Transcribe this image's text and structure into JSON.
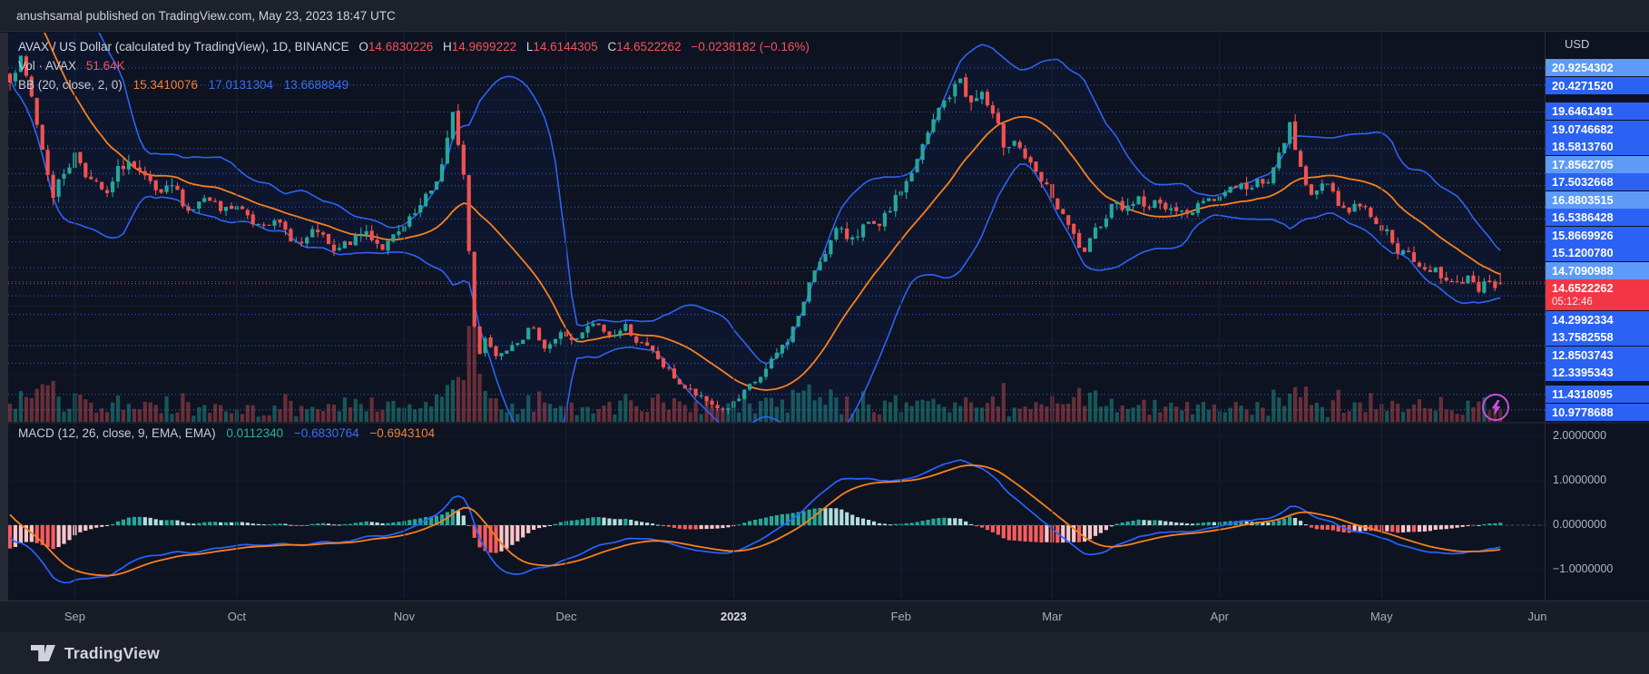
{
  "publish_bar": {
    "text": "anushsamal published on TradingView.com, May 23, 2023 18:47 UTC"
  },
  "legend": {
    "symbol": "AVAX / US Dollar (calculated by TradingView), 1D, BINANCE",
    "o_label": "O",
    "o": "14.6830226",
    "h_label": "H",
    "h": "14.9699222",
    "l_label": "L",
    "l": "14.6144305",
    "c_label": "C",
    "c": "14.6522262",
    "change": "−0.0238182 (−0.16%)",
    "vol_label": "Vol · AVAX",
    "vol_value": "51.64K",
    "bb_label": "BB (20, close, 2, 0)",
    "bb_v1": "15.3410076",
    "bb_v2": "17.0131304",
    "bb_v3": "13.6688849",
    "macd_label": "MACD (12, 26, close, 9, EMA, EMA)",
    "macd_v1": "0.0112340",
    "macd_v2": "−0.6830764",
    "macd_v3": "−0.6943104"
  },
  "price_scale": {
    "currency": "USD",
    "levels": [
      {
        "label": "20.9254302",
        "value": 20.9254302,
        "variant": "light"
      },
      {
        "label": "20.4271520",
        "value": 20.427152,
        "variant": "blue"
      },
      {
        "label": "19.6461491",
        "value": 19.6461491,
        "variant": "blue"
      },
      {
        "label": "19.0746682",
        "value": 19.0746682,
        "variant": "blue"
      },
      {
        "label": "18.5813760",
        "value": 18.581376,
        "variant": "blue"
      },
      {
        "label": "17.8562705",
        "value": 17.8562705,
        "variant": "light"
      },
      {
        "label": "17.5032668",
        "value": 17.5032668,
        "variant": "blue"
      },
      {
        "label": "16.8803515",
        "value": 16.8803515,
        "variant": "light"
      },
      {
        "label": "16.5386428",
        "value": 16.5386428,
        "variant": "blue"
      },
      {
        "label": "15.8669926",
        "value": 15.8669926,
        "variant": "blue"
      },
      {
        "label": "15.1200780",
        "value": 15.120078,
        "variant": "blue"
      },
      {
        "label": "14.7090988",
        "value": 14.7090988,
        "variant": "light"
      },
      {
        "label": "14.2992334",
        "value": 14.2992334,
        "variant": "blue"
      },
      {
        "label": "13.7582558",
        "value": 13.7582558,
        "variant": "blue"
      },
      {
        "label": "12.8503743",
        "value": 12.8503743,
        "variant": "blue"
      },
      {
        "label": "12.3395343",
        "value": 12.3395343,
        "variant": "blue"
      },
      {
        "label": "11.4318095",
        "value": 11.4318095,
        "variant": "blue"
      },
      {
        "label": "10.9778688",
        "value": 10.9778688,
        "variant": "blue"
      }
    ],
    "last_price": {
      "label": "14.6522262",
      "value": 14.6522262,
      "countdown": "05:12:46"
    }
  },
  "macd_scale": {
    "ticks": [
      {
        "label": "2.0000000",
        "value": 2
      },
      {
        "label": "1.0000000",
        "value": 1
      },
      {
        "label": "0.0000000",
        "value": 0
      },
      {
        "label": "−1.0000000",
        "value": -1
      }
    ]
  },
  "time_axis": {
    "months": [
      {
        "label": "Sep",
        "day": 12
      },
      {
        "label": "Oct",
        "day": 42
      },
      {
        "label": "Nov",
        "day": 73
      },
      {
        "label": "Dec",
        "day": 103
      },
      {
        "label": "2023",
        "day": 134,
        "bold": true
      },
      {
        "label": "Feb",
        "day": 165
      },
      {
        "label": "Mar",
        "day": 193
      },
      {
        "label": "Apr",
        "day": 224
      },
      {
        "label": "May",
        "day": 254
      },
      {
        "label": "Jun",
        "day": 285
      }
    ]
  },
  "footer": {
    "brand": "TradingView"
  },
  "colors": {
    "up": "#26a69a",
    "down": "#ef5350",
    "vol_up": "rgba(38,166,154,0.45)",
    "vol_down": "rgba(214,80,84,0.45)",
    "bb_band": "#2e62f5",
    "bb_basis": "#f8801d",
    "bb_fill": "rgba(43,98,246,0.055)",
    "level_line": "#2f66ee",
    "last_price": "#f23645",
    "label_blue": "#2b62f4",
    "label_light": "#5e9bf8",
    "macd_line": "#2962ff",
    "macd_signal": "#f8801d",
    "hist_up_grow": "#26a69a",
    "hist_up_fall": "#b2dfdb",
    "hist_dn_fall": "#f75c5c",
    "hist_dn_grow": "#fbc5ca",
    "grid": "#151b2b",
    "month_grid": "#1a2132",
    "zero_dash": "#4c5160",
    "separator": "#2a2e39",
    "flash": "#c84fd8"
  },
  "chart_data": {
    "type": "candlestick+volume+macd",
    "symbol": "AVAX/USD",
    "interval": "1D",
    "exchange": "BINANCE",
    "last_candle": {
      "open": 14.6830226,
      "high": 14.9699222,
      "low": 14.6144305,
      "close": 14.6522262,
      "change": -0.0238182,
      "change_pct": -0.16
    },
    "indicators": {
      "bollinger": {
        "length": 20,
        "source": "close",
        "stdev": 2,
        "offset": 0,
        "last_basis": 15.3410076,
        "last_upper": 17.0131304,
        "last_lower": 13.6688849
      },
      "volume": {
        "last": "51.64K"
      },
      "macd": {
        "fast": 12,
        "slow": 26,
        "source": "close",
        "signal": 9,
        "ma_type": "EMA",
        "last_hist": 0.011234,
        "last_macd": -0.6830764,
        "last_signal": -0.6943104
      }
    },
    "y_axis": {
      "currency": "USD",
      "visible_range": [
        10.5,
        21.9
      ]
    },
    "macd_axis_range": [
      -1.6,
      2.2
    ],
    "days_visible": 277,
    "close_anchors": [
      [
        -45,
        18.5
      ],
      [
        -35,
        20.5
      ],
      [
        -25,
        23.0
      ],
      [
        -15,
        24.0
      ],
      [
        -10,
        24.3
      ],
      [
        -6,
        23.2
      ],
      [
        -3,
        21.8
      ],
      [
        -1,
        20.9
      ],
      [
        0,
        20.6
      ],
      [
        2,
        21.1
      ],
      [
        4,
        19.9
      ],
      [
        6,
        18.6
      ],
      [
        8,
        17.4
      ],
      [
        10,
        17.9
      ],
      [
        12,
        18.5
      ],
      [
        14,
        18.0
      ],
      [
        16,
        17.5
      ],
      [
        18,
        17.1
      ],
      [
        20,
        17.8
      ],
      [
        22,
        18.2
      ],
      [
        25,
        17.5
      ],
      [
        28,
        17.0
      ],
      [
        30,
        17.3
      ],
      [
        33,
        16.8
      ],
      [
        36,
        17.1
      ],
      [
        39,
        16.6
      ],
      [
        42,
        16.8
      ],
      [
        45,
        16.4
      ],
      [
        48,
        16.7
      ],
      [
        51,
        16.1
      ],
      [
        54,
        15.8
      ],
      [
        57,
        16.1
      ],
      [
        60,
        15.4
      ],
      [
        63,
        15.8
      ],
      [
        66,
        16.1
      ],
      [
        69,
        15.8
      ],
      [
        72,
        16.0
      ],
      [
        75,
        16.5
      ],
      [
        78,
        17.2
      ],
      [
        80,
        18.1
      ],
      [
        82,
        19.4
      ],
      [
        83,
        18.7
      ],
      [
        84,
        17.8
      ],
      [
        85,
        15.6
      ],
      [
        86,
        13.4
      ],
      [
        87,
        12.7
      ],
      [
        88,
        13.2
      ],
      [
        90,
        12.6
      ],
      [
        93,
        13.1
      ],
      [
        96,
        13.4
      ],
      [
        99,
        12.9
      ],
      [
        102,
        13.2
      ],
      [
        105,
        13.0
      ],
      [
        108,
        13.4
      ],
      [
        111,
        13.1
      ],
      [
        114,
        13.4
      ],
      [
        117,
        12.9
      ],
      [
        120,
        12.4
      ],
      [
        123,
        11.9
      ],
      [
        126,
        11.5
      ],
      [
        129,
        11.15
      ],
      [
        132,
        11.0
      ],
      [
        135,
        11.25
      ],
      [
        138,
        11.7
      ],
      [
        141,
        12.3
      ],
      [
        144,
        13.0
      ],
      [
        147,
        14.1
      ],
      [
        149,
        15.0
      ],
      [
        151,
        15.7
      ],
      [
        153,
        16.2
      ],
      [
        155,
        15.9
      ],
      [
        158,
        16.4
      ],
      [
        161,
        16.1
      ],
      [
        163,
        16.7
      ],
      [
        165,
        17.3
      ],
      [
        168,
        18.2
      ],
      [
        170,
        18.9
      ],
      [
        172,
        19.6
      ],
      [
        174,
        20.1
      ],
      [
        176,
        20.55
      ],
      [
        178,
        19.9
      ],
      [
        180,
        20.2
      ],
      [
        182,
        19.4
      ],
      [
        184,
        18.6
      ],
      [
        186,
        19.0
      ],
      [
        188,
        18.4
      ],
      [
        190,
        17.7
      ],
      [
        193,
        17.1
      ],
      [
        195,
        16.5
      ],
      [
        197,
        15.9
      ],
      [
        199,
        15.4
      ],
      [
        201,
        16.0
      ],
      [
        203,
        16.7
      ],
      [
        205,
        17.2
      ],
      [
        207,
        16.9
      ],
      [
        209,
        17.2
      ],
      [
        211,
        16.8
      ],
      [
        213,
        17.1
      ],
      [
        215,
        16.7
      ],
      [
        217,
        17.0
      ],
      [
        219,
        16.7
      ],
      [
        221,
        17.1
      ],
      [
        224,
        17.3
      ],
      [
        227,
        17.6
      ],
      [
        230,
        17.4
      ],
      [
        233,
        17.8
      ],
      [
        235,
        18.3
      ],
      [
        237,
        19.2
      ],
      [
        238,
        18.4
      ],
      [
        240,
        17.7
      ],
      [
        242,
        17.3
      ],
      [
        244,
        17.6
      ],
      [
        246,
        17.1
      ],
      [
        248,
        16.8
      ],
      [
        250,
        17.0
      ],
      [
        252,
        16.7
      ],
      [
        254,
        16.4
      ],
      [
        256,
        16.0
      ],
      [
        258,
        15.6
      ],
      [
        260,
        15.2
      ],
      [
        262,
        14.95
      ],
      [
        264,
        15.15
      ],
      [
        266,
        14.8
      ],
      [
        268,
        14.55
      ],
      [
        270,
        14.9
      ],
      [
        272,
        14.6
      ],
      [
        274,
        14.75
      ],
      [
        275,
        14.68
      ],
      [
        276,
        14.6522262
      ]
    ]
  }
}
